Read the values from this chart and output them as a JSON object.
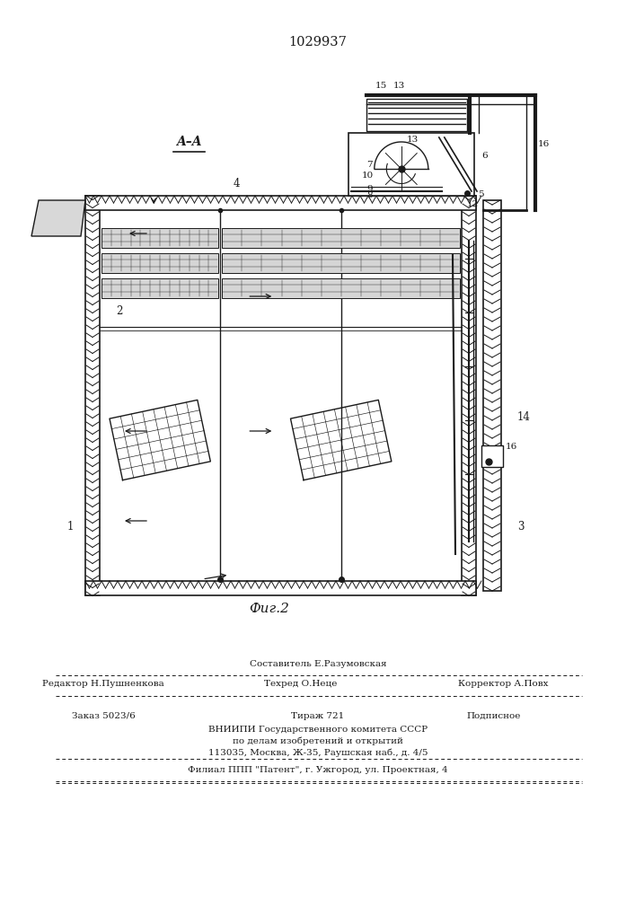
{
  "patent_number": "1029937",
  "fig_label": "Фиг.2",
  "lc": "#1a1a1a",
  "footer": {
    "sostavitel": "Составитель Е.Разумовская",
    "redaktor": "Редактор Н.Пушненкова",
    "tehred": "Техред О.Неце",
    "korrektor": "Корректор А.Повх",
    "zakaz": "Заказ 5023/6",
    "tirazh": "Тираж 721",
    "podpis": "Подписное",
    "vnipi": "ВНИИПИ Государственного комитета СССР",
    "dela": "по делам изобретений и открытий",
    "address": "113035, Москва, Ж-35, Раушская наб., д. 4/5",
    "filial": "Филиал ППП \"Патент\", г. Ужгород, ул. Проектная, 4"
  }
}
